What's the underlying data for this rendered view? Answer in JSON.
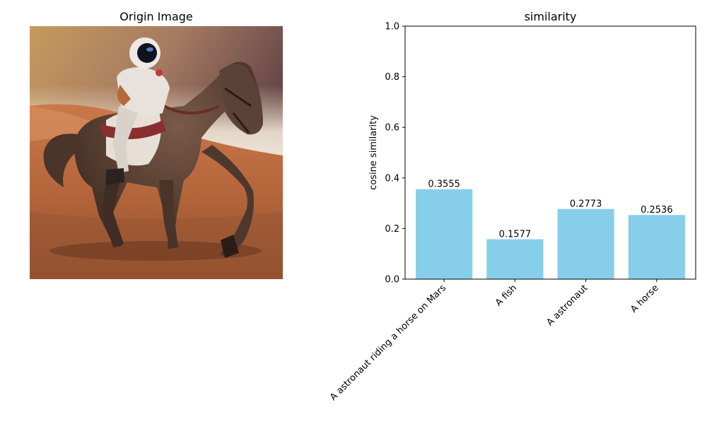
{
  "left_panel": {
    "title": "Origin Image",
    "image_description_icon": "astronaut-riding-horse-on-mars-image"
  },
  "colors": {
    "bar": "#87ceeb",
    "axis": "#000000",
    "background": "#ffffff"
  },
  "chart_data": {
    "type": "bar",
    "title": "similarity",
    "xlabel": "",
    "ylabel": "cosine similarity",
    "ylim": [
      0,
      1.0
    ],
    "yticks": [
      0.0,
      0.2,
      0.4,
      0.6,
      0.8,
      1.0
    ],
    "ytick_labels": [
      "0.0",
      "0.2",
      "0.4",
      "0.6",
      "0.8",
      "1.0"
    ],
    "categories": [
      "A astronaut riding a horse on Mars",
      "A fish",
      "A astronaut",
      "A horse"
    ],
    "values": [
      0.3555,
      0.1577,
      0.2773,
      0.2536
    ],
    "value_labels": [
      "0.3555",
      "0.1577",
      "0.2773",
      "0.2536"
    ],
    "grid": false
  }
}
